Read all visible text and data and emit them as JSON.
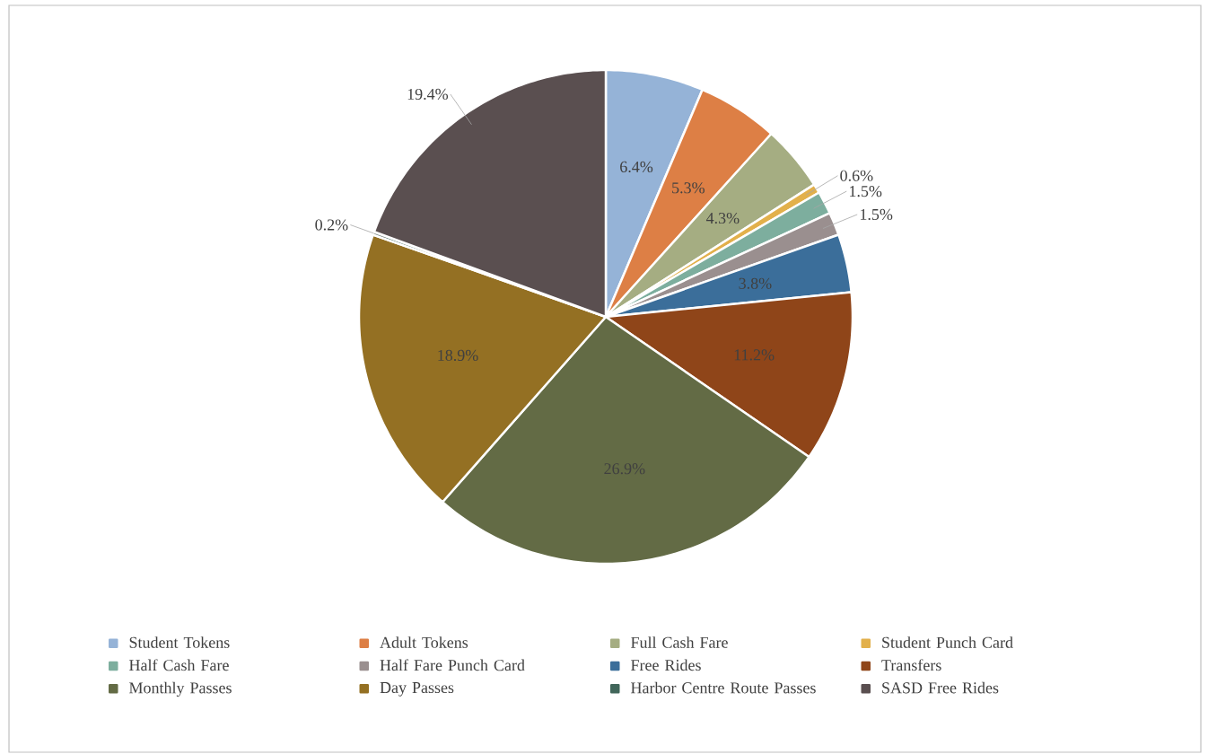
{
  "chart_data": {
    "type": "pie",
    "categories": [
      "Student Tokens",
      "Adult Tokens",
      "Full Cash Fare",
      "Student Punch Card",
      "Half Cash Fare",
      "Half Fare Punch Card",
      "Free Rides",
      "Transfers",
      "Monthly Passes",
      "Day Passes",
      "Harbor Centre Route Passes",
      "SASD Free Rides"
    ],
    "values": [
      6.4,
      5.3,
      4.3,
      0.6,
      1.5,
      1.5,
      3.8,
      11.2,
      26.9,
      18.9,
      0.2,
      19.4
    ],
    "value_labels": [
      "6.4%",
      "5.3%",
      "4.3%",
      "0.6%",
      "1.5%",
      "1.5%",
      "3.8%",
      "11.2%",
      "26.9%",
      "18.9%",
      "0.2%",
      "19.4%"
    ],
    "colors": [
      "#95b3d7",
      "#dd7f45",
      "#a5ad82",
      "#e2b04b",
      "#7dae9e",
      "#9a8f8f",
      "#3b6e9a",
      "#8f4519",
      "#636b45",
      "#947023",
      "#41665a",
      "#5a4f50"
    ],
    "legend": "bottom"
  }
}
